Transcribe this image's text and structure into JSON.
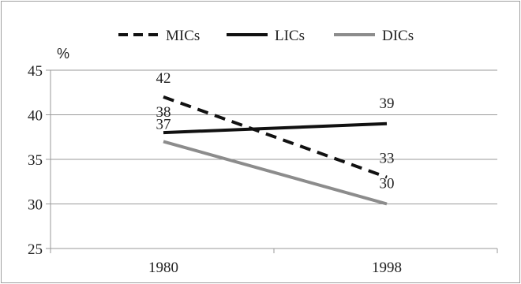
{
  "chart_data": {
    "type": "line",
    "categories": [
      "1980",
      "1998"
    ],
    "series": [
      {
        "name": "MICs",
        "values": [
          42,
          33
        ],
        "color": "#111111",
        "dash": "dashed"
      },
      {
        "name": "LICs",
        "values": [
          38,
          39
        ],
        "color": "#111111",
        "dash": "solid"
      },
      {
        "name": "DICs",
        "values": [
          37,
          30
        ],
        "color": "#8c8c8c",
        "dash": "solid"
      }
    ],
    "y_unit": "%",
    "ylim": [
      25,
      45
    ],
    "y_ticks": [
      "25",
      "30",
      "35",
      "40",
      "45"
    ],
    "grid": true,
    "legend_position": "top"
  }
}
